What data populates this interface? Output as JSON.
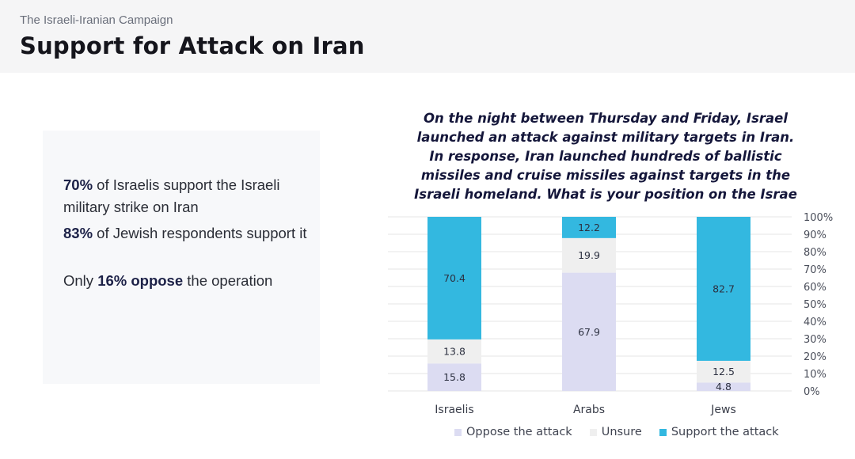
{
  "header": {
    "kicker": "The Israeli-Iranian Campaign",
    "title": "Support for Attack on Iran"
  },
  "stats": [
    {
      "strong": "70%",
      "text": " of Israelis support the Israeli military strike on Iran"
    },
    {
      "strong": "83%",
      "text": " of Jewish respondents support it"
    },
    {
      "prefix": "Only ",
      "strong": "16% oppose",
      "text": " the operation"
    }
  ],
  "chart_data": {
    "type": "bar",
    "stacked": true,
    "title": "On the night between Thursday and Friday, Israel launched an attack against military targets in Iran. In response, Iran launched hundreds of ballistic missiles and cruise missiles against targets in the Israeli homeland. What is your position on the Israe",
    "categories": [
      "Israelis",
      "Arabs",
      "Jews"
    ],
    "series": [
      {
        "name": "Oppose the attack",
        "values": [
          15.8,
          67.9,
          4.8
        ],
        "color": "#dcdcf2"
      },
      {
        "name": "Unsure",
        "values": [
          13.8,
          19.9,
          12.5
        ],
        "color": "#efefef"
      },
      {
        "name": "Support the attack",
        "values": [
          70.4,
          12.2,
          82.7
        ],
        "color": "#33b8e0"
      }
    ],
    "ylim": [
      0,
      100
    ],
    "yticks": [
      "0%",
      "10%",
      "20%",
      "30%",
      "40%",
      "50%",
      "60%",
      "70%",
      "80%",
      "90%",
      "100%"
    ],
    "grid": true,
    "legend": "bottom"
  }
}
